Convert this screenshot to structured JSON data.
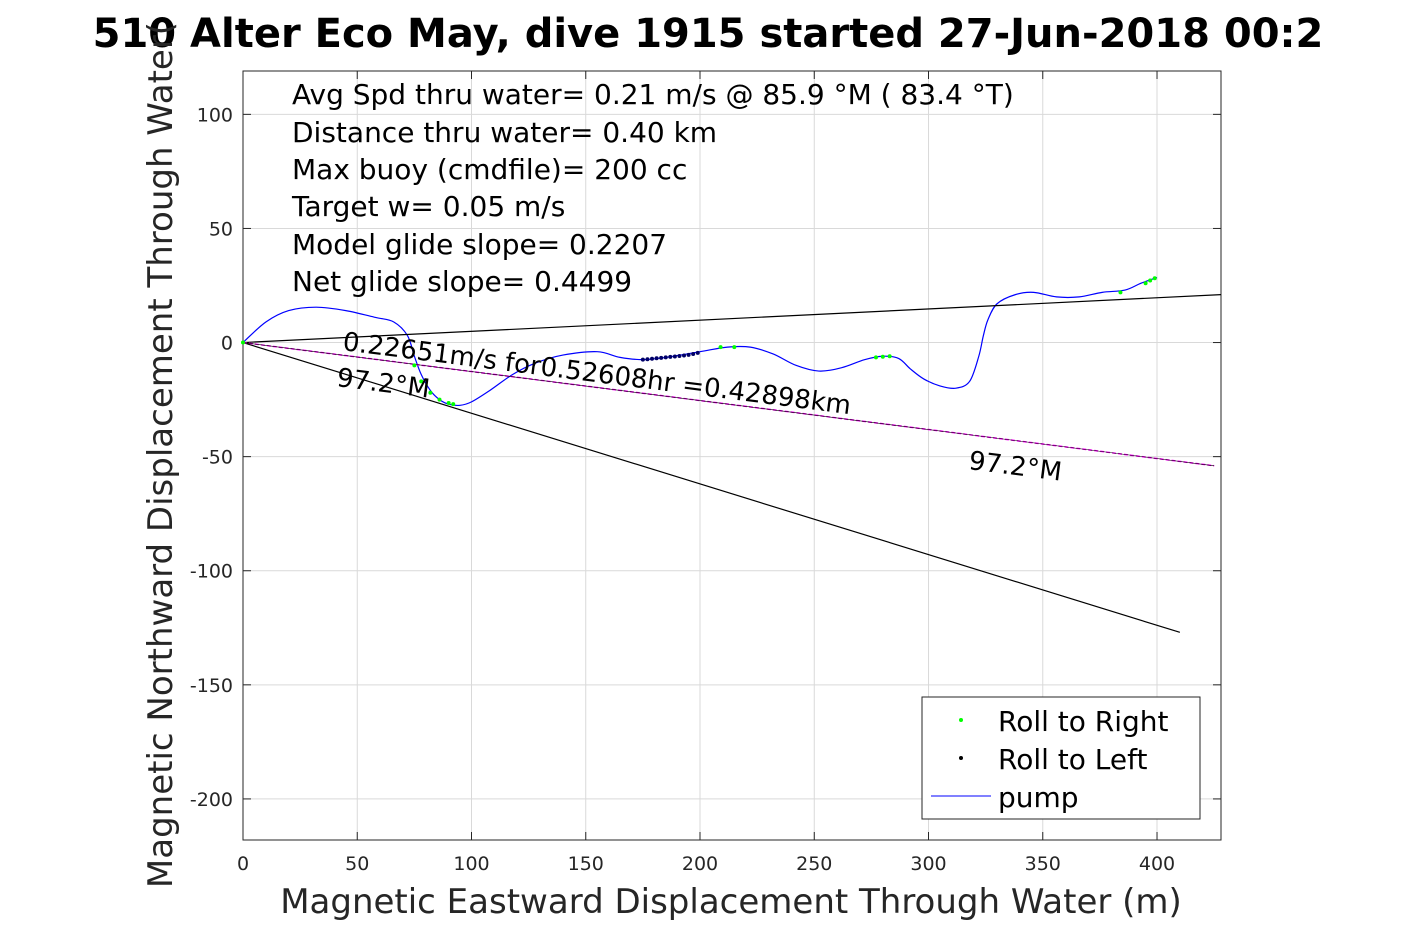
{
  "chart_data": {
    "type": "line",
    "title": "510 Alter Eco May, dive 1915 started 27-Jun-2018 00:2",
    "xlabel": "Magnetic Eastward Displacement Through Water (m)",
    "ylabel": "Magnetic Northward Displacement Through Water(",
    "xlim": [
      0,
      428
    ],
    "ylim": [
      -218,
      119
    ],
    "xticks": [
      0,
      50,
      100,
      150,
      200,
      250,
      300,
      350,
      400
    ],
    "yticks": [
      100,
      50,
      0,
      -50,
      -100,
      -150,
      -200
    ],
    "grid": true,
    "legend_position": "bottom-right",
    "annotations": [
      "Avg Spd thru water=  0.21 m/s @  85.9 °M ( 83.4 °T)",
      "Distance thru water=  0.40 km",
      "Max buoy (cmdfile)= 200 cc",
      "Target w= 0.05 m/s",
      "Model glide slope= 0.2207",
      "Net glide slope= 0.4499"
    ],
    "line_labels": {
      "speed_label": "0.22651m/s for0.52608hr =0.42898km",
      "heading_label_near": "97.2°M",
      "heading_label_far": "97.2°M"
    },
    "colors": {
      "path": "#0000ff",
      "roll_right": "#00ff00",
      "roll_left": "#000000",
      "heading_line": "#ff00ff",
      "reference_lines": "#000000",
      "grid": "#d9d9d9"
    },
    "series": [
      {
        "name": "pump",
        "kind": "line",
        "x": [
          0,
          10,
          20,
          32,
          45,
          58,
          66,
          72,
          75,
          78,
          82,
          86,
          90,
          95,
          100,
          108,
          118,
          128,
          140,
          155,
          165,
          175,
          185,
          200,
          212,
          222,
          232,
          242,
          252,
          262,
          272,
          280,
          287,
          292,
          298,
          305,
          312,
          318,
          322,
          324,
          326,
          330,
          338,
          346,
          356,
          366,
          376,
          386,
          393,
          400
        ],
        "y": [
          0,
          9,
          14,
          15.5,
          14,
          11,
          9,
          3,
          -6,
          -14,
          -21,
          -25,
          -27,
          -27.5,
          -26,
          -21,
          -14,
          -9,
          -5.5,
          -4,
          -6.5,
          -7.5,
          -6.5,
          -4,
          -2,
          -2,
          -5,
          -10,
          -12.5,
          -11,
          -7.5,
          -6,
          -7,
          -11.5,
          -16,
          -19,
          -20,
          -17,
          -6,
          3,
          10,
          17,
          21,
          22,
          20,
          20,
          22,
          23,
          26,
          28.5
        ]
      },
      {
        "name": "Roll to Right",
        "kind": "points",
        "x": [
          0,
          75,
          78,
          82,
          86,
          90,
          92,
          209,
          215,
          277,
          280,
          283,
          384,
          395,
          397,
          399
        ],
        "y": [
          0,
          -10,
          -17,
          -22,
          -25,
          -26.5,
          -27,
          -2,
          -2,
          -6.5,
          -6.2,
          -6,
          22,
          26,
          27.2,
          28.2
        ]
      },
      {
        "name": "Roll to Left",
        "kind": "points",
        "x": [
          175,
          177,
          179,
          181,
          183,
          185,
          187,
          189,
          191,
          193,
          195,
          197,
          199
        ],
        "y": [
          -7.5,
          -7.3,
          -7.1,
          -6.9,
          -6.7,
          -6.5,
          -6.3,
          -6.1,
          -5.9,
          -5.7,
          -5.4,
          -5.0,
          -4.5
        ]
      },
      {
        "kind": "ref-line",
        "x": [
          0,
          428
        ],
        "y": [
          0,
          21
        ]
      },
      {
        "kind": "ref-line",
        "x": [
          0,
          410
        ],
        "y": [
          0,
          -127
        ]
      },
      {
        "kind": "heading-line",
        "x": [
          0,
          425
        ],
        "y": [
          0,
          -54
        ]
      }
    ],
    "legend": [
      "Roll to Right",
      "Roll to Left",
      "pump"
    ]
  }
}
